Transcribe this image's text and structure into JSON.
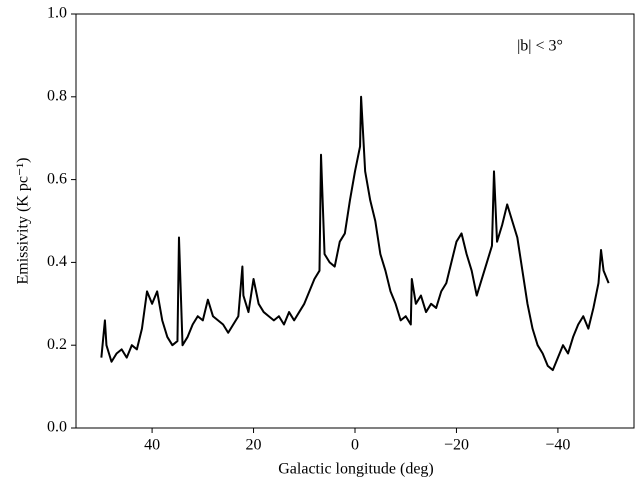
{
  "chart_data": {
    "type": "line",
    "xlabel": "Galactic longitude (deg)",
    "ylabel": "Emissivity (K pc⁻¹)",
    "annotation": "|b| < 3°",
    "xlim": [
      55,
      -55
    ],
    "xticks": [
      40,
      20,
      0,
      {
        "value": -20,
        "label": "−20"
      },
      {
        "value": -40,
        "label": "−40"
      }
    ],
    "ylim": [
      0,
      1
    ],
    "yticks": [
      {
        "value": 0,
        "label": "0.0"
      },
      0.2,
      0.4,
      0.6,
      0.8,
      {
        "value": 1,
        "label": "1.0"
      }
    ],
    "series": [
      {
        "color": "#000000",
        "x": [
          50,
          49.3,
          49,
          48,
          47,
          46,
          45,
          44,
          43,
          42,
          41,
          40,
          39,
          38,
          37,
          36,
          35,
          34.7,
          34,
          33,
          32,
          31,
          30,
          29,
          28,
          27,
          26,
          25,
          24,
          23,
          22.2,
          22,
          21,
          20,
          19,
          18,
          17,
          16,
          15,
          14,
          13,
          12,
          11,
          10,
          9,
          8,
          7,
          6.7,
          6,
          5,
          4,
          3,
          2,
          1,
          0,
          -1,
          -1.2,
          -2,
          -3,
          -4,
          -5,
          -6,
          -7,
          -8,
          -9,
          -10,
          -11,
          -11.2,
          -12,
          -13,
          -14,
          -15,
          -16,
          -17,
          -18,
          -19,
          -20,
          -21,
          -22,
          -23,
          -24,
          -25,
          -26,
          -27,
          -27.4,
          -28,
          -29,
          -30,
          -31,
          -32,
          -33,
          -34,
          -35,
          -36,
          -37,
          -38,
          -39,
          -40,
          -41,
          -42,
          -43,
          -44,
          -45,
          -46,
          -47,
          -48,
          -48.5,
          -49,
          -50
        ],
        "values": [
          0.17,
          0.26,
          0.2,
          0.16,
          0.18,
          0.19,
          0.17,
          0.2,
          0.19,
          0.24,
          0.33,
          0.3,
          0.33,
          0.26,
          0.22,
          0.2,
          0.21,
          0.46,
          0.2,
          0.22,
          0.25,
          0.27,
          0.26,
          0.31,
          0.27,
          0.26,
          0.25,
          0.23,
          0.25,
          0.27,
          0.39,
          0.32,
          0.28,
          0.36,
          0.3,
          0.28,
          0.27,
          0.26,
          0.27,
          0.25,
          0.28,
          0.26,
          0.28,
          0.3,
          0.33,
          0.36,
          0.38,
          0.66,
          0.42,
          0.4,
          0.39,
          0.45,
          0.47,
          0.55,
          0.62,
          0.68,
          0.8,
          0.62,
          0.55,
          0.5,
          0.42,
          0.38,
          0.33,
          0.3,
          0.26,
          0.27,
          0.25,
          0.36,
          0.3,
          0.32,
          0.28,
          0.3,
          0.29,
          0.33,
          0.35,
          0.4,
          0.45,
          0.47,
          0.42,
          0.38,
          0.32,
          0.36,
          0.4,
          0.44,
          0.62,
          0.45,
          0.49,
          0.54,
          0.5,
          0.46,
          0.38,
          0.3,
          0.24,
          0.2,
          0.18,
          0.15,
          0.14,
          0.17,
          0.2,
          0.18,
          0.22,
          0.25,
          0.27,
          0.24,
          0.29,
          0.35,
          0.43,
          0.38,
          0.35
        ]
      }
    ]
  }
}
